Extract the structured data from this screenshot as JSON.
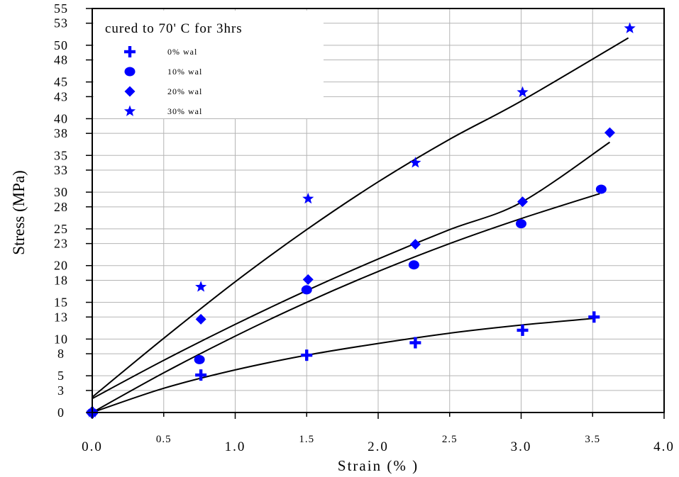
{
  "chart_data": {
    "type": "scatter",
    "title": "",
    "legend_title": "cured to 70' C for 3hrs",
    "legend_position": "top-left",
    "xlabel": "Strain (% )",
    "ylabel": "Stress (MPa)",
    "xlim": [
      0,
      4
    ],
    "ylim": [
      0,
      55
    ],
    "grid": true,
    "x_major_ticks": [
      "0.0",
      "1.0",
      "2.0",
      "3.0",
      "4.0"
    ],
    "x_minor_ticks": [
      "0.5",
      "1.5",
      "2.5",
      "3.5"
    ],
    "y_ticks": [
      "0",
      "3",
      "5",
      "8",
      "10",
      "13",
      "15",
      "18",
      "20",
      "23",
      "25",
      "28",
      "30",
      "33",
      "35",
      "38",
      "40",
      "43",
      "45",
      "48",
      "50",
      "53",
      "55"
    ],
    "series": [
      {
        "name": "0% wal",
        "marker": "plus",
        "color": "#0000ff",
        "points": [
          [
            0,
            0
          ],
          [
            0.76,
            5.1
          ],
          [
            1.5,
            7.8
          ],
          [
            2.26,
            9.5
          ],
          [
            3.01,
            11.2
          ],
          [
            3.51,
            13
          ]
        ],
        "fit": [
          [
            0,
            0
          ],
          [
            0.5,
            3.3
          ],
          [
            1,
            5.8
          ],
          [
            1.5,
            7.8
          ],
          [
            2,
            9.4
          ],
          [
            2.5,
            10.8
          ],
          [
            3,
            11.9
          ],
          [
            3.5,
            12.8
          ]
        ]
      },
      {
        "name": "10% wal",
        "marker": "circle",
        "color": "#0000ff",
        "points": [
          [
            0,
            0
          ],
          [
            0.75,
            7.2
          ],
          [
            1.5,
            16.7
          ],
          [
            2.25,
            20.1
          ],
          [
            3.0,
            25.7
          ],
          [
            3.56,
            30.4
          ]
        ],
        "fit": [
          [
            0,
            0
          ],
          [
            0.5,
            5.4
          ],
          [
            1,
            10.4
          ],
          [
            1.5,
            15
          ],
          [
            2,
            19.2
          ],
          [
            2.5,
            23
          ],
          [
            3,
            26.4
          ],
          [
            3.55,
            29.8
          ]
        ]
      },
      {
        "name": "20% wal",
        "marker": "diamond",
        "color": "#0000ff",
        "points": [
          [
            0,
            0
          ],
          [
            0.76,
            12.7
          ],
          [
            1.51,
            18.1
          ],
          [
            2.26,
            22.9
          ],
          [
            3.01,
            28.7
          ],
          [
            3.62,
            38.1
          ]
        ],
        "fit": [
          [
            0,
            1.9
          ],
          [
            0.5,
            7.1
          ],
          [
            1,
            12
          ],
          [
            1.5,
            16.6
          ],
          [
            2,
            20.9
          ],
          [
            2.5,
            24.9
          ],
          [
            3,
            28.6
          ],
          [
            3.62,
            36.8
          ]
        ]
      },
      {
        "name": "30% wal",
        "marker": "star",
        "color": "#0000ff",
        "points": [
          [
            0,
            0
          ],
          [
            0.76,
            17.1
          ],
          [
            1.51,
            29.1
          ],
          [
            2.26,
            34.0
          ],
          [
            3.01,
            43.6
          ],
          [
            3.76,
            52.3
          ]
        ],
        "fit": [
          [
            0,
            2.1
          ],
          [
            0.5,
            10.1
          ],
          [
            1,
            17.8
          ],
          [
            1.5,
            24.9
          ],
          [
            2,
            31.4
          ],
          [
            2.5,
            37.2
          ],
          [
            3,
            42.4
          ],
          [
            3.75,
            51
          ]
        ]
      }
    ]
  }
}
